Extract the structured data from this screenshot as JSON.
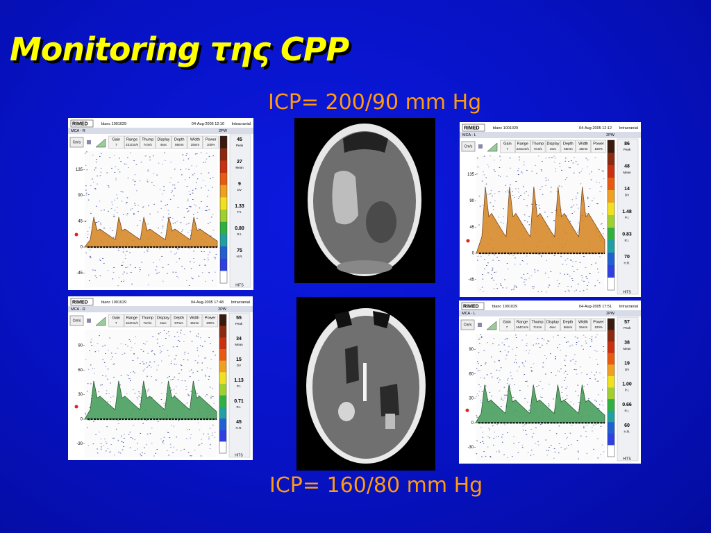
{
  "title": "Monitoring της CPP",
  "icp_top": "ICP= 200/90 mm Hg",
  "icp_bottom": "ICP= 160/80 mm Hg",
  "panels": [
    {
      "brand": "RIMED",
      "patient": "blanc 1001029",
      "date": "04-Aug-2005 12:10",
      "mode": "Intracranial",
      "vessel": "MCA - R",
      "probe": "2PW",
      "unit": "Cm/s",
      "settings": [
        {
          "label": "Gain",
          "value": "7"
        },
        {
          "label": "Range",
          "value": "231Cm/s"
        },
        {
          "label": "Thump",
          "value": "7cm/s"
        },
        {
          "label": "Display",
          "value": "4sec"
        },
        {
          "label": "Depth",
          "value": "56mm"
        },
        {
          "label": "Width",
          "value": "15mm"
        },
        {
          "label": "Power",
          "value": "100%"
        }
      ],
      "readouts": [
        {
          "value": "45",
          "label": "Peak"
        },
        {
          "value": "27",
          "label": "Mean"
        },
        {
          "value": "9",
          "label": "DV"
        },
        {
          "value": "1.33",
          "label": "P.I."
        },
        {
          "value": "0.80",
          "label": "R.I."
        },
        {
          "value": "75",
          "label": "H.R."
        }
      ],
      "hits": "HITS",
      "yticks": [
        "135",
        "90",
        "45",
        "0",
        "-45"
      ]
    },
    {
      "brand": "RIMED",
      "patient": "blanc 1001029",
      "date": "04-Aug-2005 12:12",
      "mode": "Intracranial",
      "vessel": "MCA - L",
      "probe": "2PW",
      "unit": "Cm/s",
      "settings": [
        {
          "label": "Gain",
          "value": "7"
        },
        {
          "label": "Range",
          "value": "231Cm/s"
        },
        {
          "label": "Thump",
          "value": "7cm/s"
        },
        {
          "label": "Display",
          "value": "4sec"
        },
        {
          "label": "Depth",
          "value": "55mm"
        },
        {
          "label": "Width",
          "value": "15mm"
        },
        {
          "label": "Power",
          "value": "100%"
        }
      ],
      "readouts": [
        {
          "value": "86",
          "label": "Peak"
        },
        {
          "value": "48",
          "label": "Mean"
        },
        {
          "value": "14",
          "label": "DV"
        },
        {
          "value": "1.48",
          "label": "P.I."
        },
        {
          "value": "0.83",
          "label": "R.I."
        },
        {
          "value": "70",
          "label": "H.R."
        }
      ],
      "hits": "HITS",
      "yticks": [
        "135",
        "90",
        "45",
        "0",
        "-45"
      ]
    },
    {
      "brand": "RIMED",
      "patient": "blanc 1001029",
      "date": "04-Aug-2005 17:48",
      "mode": "Intracranial",
      "vessel": "MCA - R",
      "probe": "2PW",
      "unit": "Cm/s",
      "settings": [
        {
          "label": "Gain",
          "value": "7"
        },
        {
          "label": "Range",
          "value": "164Cm/s"
        },
        {
          "label": "Thump",
          "value": "7cm/s"
        },
        {
          "label": "Display",
          "value": "4sec"
        },
        {
          "label": "Depth",
          "value": "57mm"
        },
        {
          "label": "Width",
          "value": "15mm"
        },
        {
          "label": "Power",
          "value": "100%"
        }
      ],
      "readouts": [
        {
          "value": "55",
          "label": "Peak"
        },
        {
          "value": "34",
          "label": "Mean"
        },
        {
          "value": "15",
          "label": "DV"
        },
        {
          "value": "1.13",
          "label": "P.I."
        },
        {
          "value": "0.71",
          "label": "R.I."
        },
        {
          "value": "45",
          "label": "H.R."
        }
      ],
      "hits": "HITS",
      "yticks": [
        "90",
        "60",
        "30",
        "0",
        "-30"
      ]
    },
    {
      "brand": "RIMED",
      "patient": "blanc 1001029",
      "date": "04-Aug-2005 17:51",
      "mode": "Intracranial",
      "vessel": "MCA - L",
      "probe": "2PW",
      "unit": "Cm/s",
      "settings": [
        {
          "label": "Gain",
          "value": "7"
        },
        {
          "label": "Range",
          "value": "164Cm/s"
        },
        {
          "label": "Thump",
          "value": "7cm/s"
        },
        {
          "label": "Display",
          "value": "4sec"
        },
        {
          "label": "Depth",
          "value": "56mm"
        },
        {
          "label": "Width",
          "value": "15mm"
        },
        {
          "label": "Power",
          "value": "100%"
        }
      ],
      "readouts": [
        {
          "value": "57",
          "label": "Peak"
        },
        {
          "value": "38",
          "label": "Mean"
        },
        {
          "value": "19",
          "label": "DV"
        },
        {
          "value": "1.00",
          "label": "P.I."
        },
        {
          "value": "0.66",
          "label": "R.I."
        },
        {
          "value": "60",
          "label": "H.R."
        }
      ],
      "hits": "HITS",
      "yticks": [
        "90",
        "60",
        "30",
        "0",
        "-30"
      ]
    }
  ]
}
